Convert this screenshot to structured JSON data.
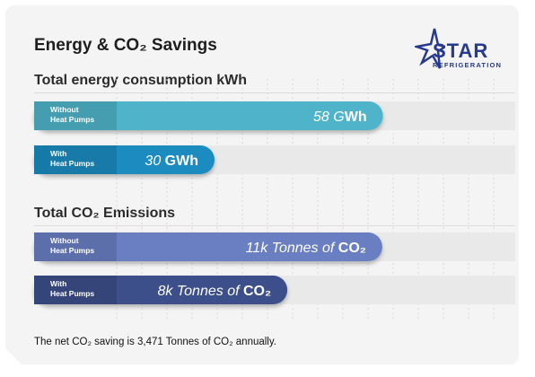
{
  "title": "Energy & CO₂ Savings",
  "logo": {
    "word": "STAR",
    "sub": "REFRIGERATION"
  },
  "footnote": "The net CO₂ saving is 3,471 Tonnes of CO₂ annually.",
  "colors": {
    "bar_energy_without": "#4fb3c9",
    "bar_energy_with": "#1a8bc0",
    "bar_co2_without": "#6a7fc2",
    "bar_co2_with": "#3c4f8a",
    "track": "#e9e9e9"
  },
  "chart_data": [
    {
      "type": "bar",
      "orientation": "horizontal",
      "title": "Total energy consumption kWh",
      "categories": [
        "Without\nHeat Pumps",
        "With\nHeat Pumps"
      ],
      "values": [
        58,
        30
      ],
      "unit": "GWh",
      "value_labels": [
        {
          "number": "58 G",
          "unit": "Wh"
        },
        {
          "number": "30 ",
          "unit": "GWh"
        }
      ],
      "xlim": [
        0,
        80
      ]
    },
    {
      "type": "bar",
      "orientation": "horizontal",
      "title": "Total CO₂ Emissions",
      "categories": [
        "Without\nHeat Pumps",
        "With\nHeat Pumps"
      ],
      "values": [
        11,
        8
      ],
      "unit": "k Tonnes of CO₂",
      "value_labels": [
        {
          "number": "11k Tonnes of ",
          "unit": "CO₂"
        },
        {
          "number": "8k Tonnes of ",
          "unit": "CO₂"
        }
      ],
      "xlim": [
        0,
        15.2
      ]
    }
  ]
}
